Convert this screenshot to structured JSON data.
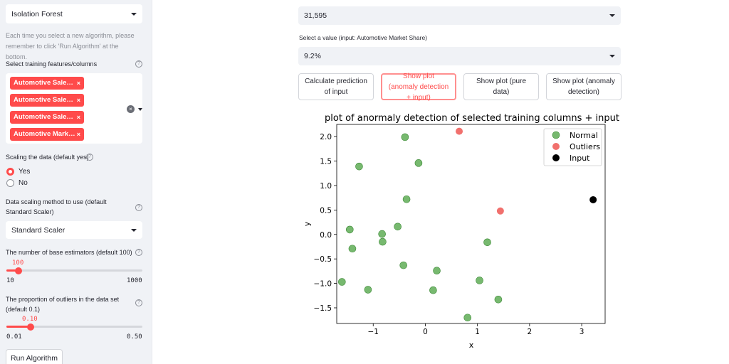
{
  "sidebar": {
    "algorithm_select": "Isolation Forest",
    "note": "Each time you select a new algorithm, please remember to click 'Run Algorithm' at the bottom.",
    "features_label": "Select training features/columns",
    "features": [
      "Automotive Sale…",
      "Automotive Sale…",
      "Automotive Sale…",
      "Automotive Mark…"
    ],
    "tag_remove": "×",
    "scaling_label": "Scaling the data (default yes)",
    "scaling_options": [
      "Yes",
      "No"
    ],
    "scaling_selected": "Yes",
    "method_label": "Data scaling method to use (default Standard Scaler)",
    "method_select": "Standard Scaler",
    "estimators_label": "The number of base estimators (default 100)",
    "estimators": {
      "value": "100",
      "min": "10",
      "max": "1000",
      "fraction": 0.09
    },
    "outliers_label": "The proportion of outliers in the data set (default 0.1)",
    "outliers": {
      "value": "0.10",
      "min": "0.01",
      "max": "0.50",
      "fraction": 0.18
    },
    "run_button": "Run Algorithm",
    "help_icon": "?"
  },
  "main": {
    "top_select": "31,595",
    "value_label": "Select a value (input: Automotive Market Share)",
    "value_select": "9.2%",
    "buttons": [
      "Calculate prediction of input",
      "Show plot (anomaly detection + input)",
      "Show plot (pure data)",
      "Show plot (anomaly detection)"
    ],
    "active_button_index": 1
  },
  "chart_data": {
    "type": "scatter",
    "title": "plot of anormaly detection of selected training columns + input",
    "xlabel": "x",
    "ylabel": "y",
    "xlim": [
      -1.7,
      3.45
    ],
    "ylim": [
      -1.82,
      2.25
    ],
    "xticks": [
      -1,
      0,
      1,
      2,
      3
    ],
    "yticks": [
      -1.5,
      -1.0,
      -0.5,
      0.0,
      0.5,
      1.0,
      1.5,
      2.0
    ],
    "legend_position": "top-right",
    "series": [
      {
        "name": "Normal",
        "color": "#5fad56",
        "points": [
          [
            -0.39,
            1.99
          ],
          [
            -1.27,
            1.39
          ],
          [
            -0.13,
            1.46
          ],
          [
            -0.36,
            0.72
          ],
          [
            -1.45,
            0.1
          ],
          [
            -0.53,
            0.16
          ],
          [
            -0.83,
            0.01
          ],
          [
            -0.82,
            -0.15
          ],
          [
            -1.4,
            -0.29
          ],
          [
            1.19,
            -0.16
          ],
          [
            -0.42,
            -0.63
          ],
          [
            0.22,
            -0.74
          ],
          [
            -1.6,
            -0.97
          ],
          [
            -1.1,
            -1.13
          ],
          [
            0.15,
            -1.14
          ],
          [
            1.04,
            -0.94
          ],
          [
            1.4,
            -1.33
          ],
          [
            0.81,
            -1.7
          ]
        ]
      },
      {
        "name": "Outliers",
        "color": "#f0605d",
        "points": [
          [
            0.65,
            2.11
          ],
          [
            1.44,
            0.48
          ]
        ]
      },
      {
        "name": "Input",
        "color": "#000000",
        "points": [
          [
            3.22,
            0.71
          ]
        ]
      }
    ]
  }
}
